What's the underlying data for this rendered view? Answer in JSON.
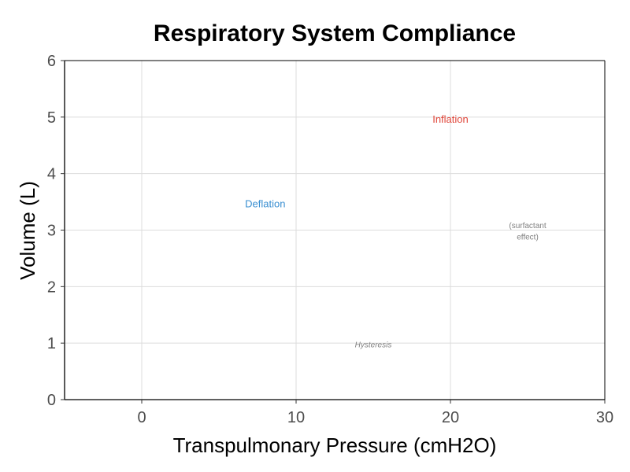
{
  "chart_data": {
    "type": "line",
    "title": "Respiratory System Compliance",
    "xlabel": "Transpulmonary Pressure (cmH2O)",
    "ylabel": "Volume (L)",
    "xlim": [
      -5,
      30
    ],
    "ylim": [
      0,
      6
    ],
    "x_ticks": [
      0,
      10,
      20,
      30
    ],
    "y_ticks": [
      0,
      1,
      2,
      3,
      4,
      5,
      6
    ],
    "grid": true,
    "series": [],
    "annotations": [
      {
        "text": "Inflation",
        "x": 20,
        "y": 4.95,
        "color": "#e0463a",
        "style": "normal",
        "size": "small"
      },
      {
        "text": "Deflation",
        "x": 8,
        "y": 3.45,
        "color": "#3a8fd1",
        "style": "normal",
        "size": "small"
      },
      {
        "text": "(surfactant",
        "x": 25,
        "y": 3.07,
        "color": "#7f7f7f",
        "style": "normal",
        "size": "tiny"
      },
      {
        "text": "effect)",
        "x": 25,
        "y": 2.87,
        "color": "#7f7f7f",
        "style": "normal",
        "size": "tiny"
      },
      {
        "text": "Hysteresis",
        "x": 15,
        "y": 0.96,
        "color": "#7f7f7f",
        "style": "italic",
        "size": "tiny"
      }
    ]
  }
}
